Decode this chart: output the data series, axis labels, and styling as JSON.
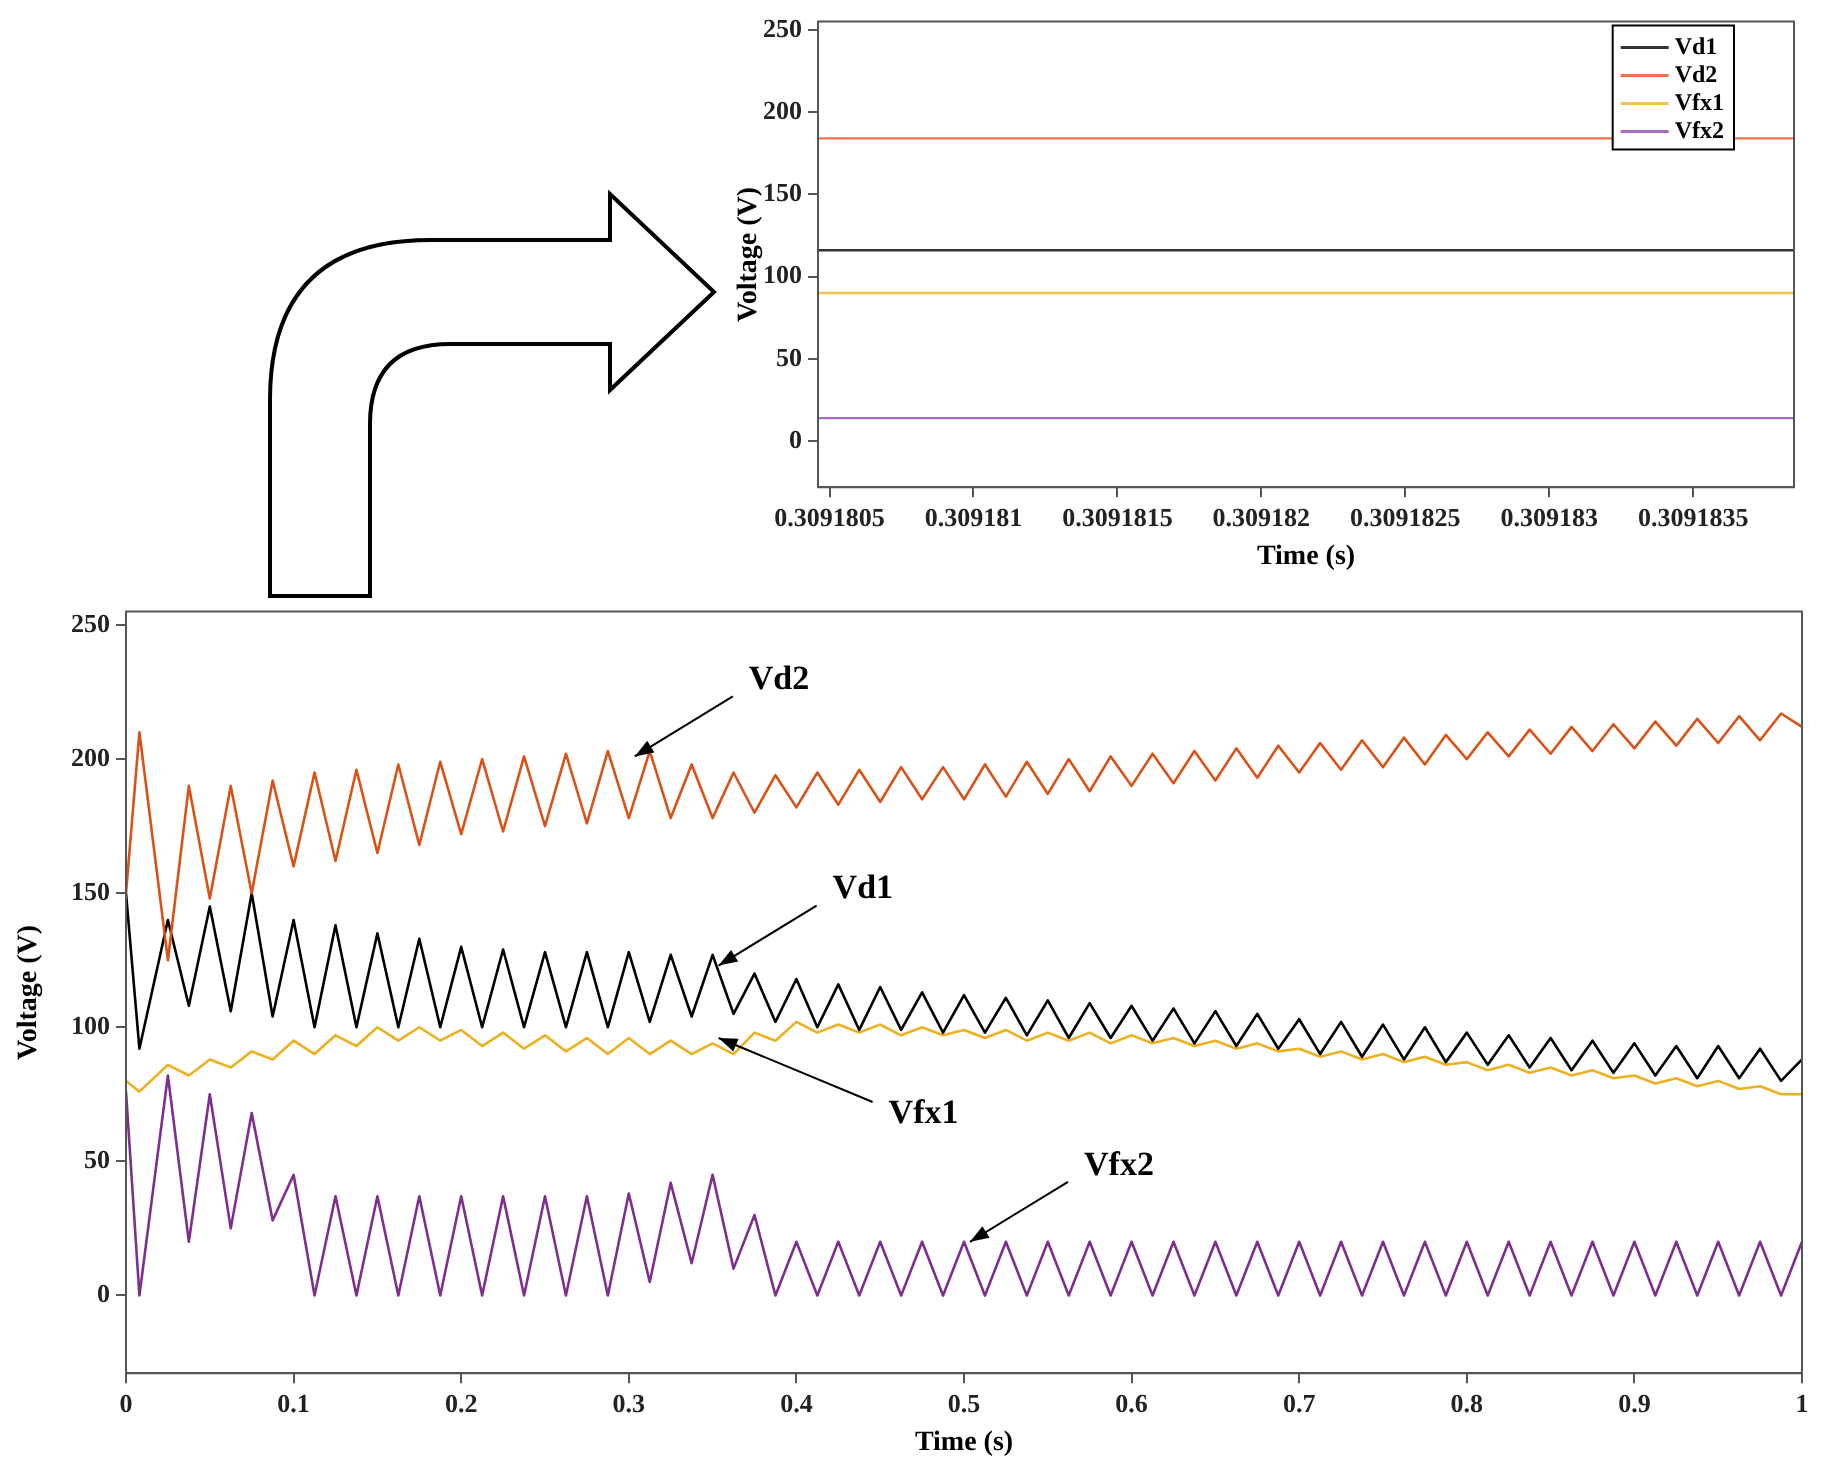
{
  "chart_data": [
    {
      "type": "line",
      "xlabel": "Time (s)",
      "ylabel": "Voltage (V)",
      "legend": "top right",
      "x": [
        0.30918046,
        0.30918385
      ],
      "xlim": [
        0.30918046,
        0.30918385
      ],
      "xticks": [
        0.3091805,
        0.309181,
        0.3091815,
        0.309182,
        0.3091825,
        0.309183,
        0.3091835
      ],
      "ylim": [
        -28,
        255
      ],
      "yticks": [
        0,
        50,
        100,
        150,
        200,
        250
      ],
      "series": [
        {
          "name": "Vd1",
          "color": "#333333",
          "values": [
            116,
            116
          ]
        },
        {
          "name": "Vd2",
          "color": "#e8744a",
          "values": [
            184,
            184
          ]
        },
        {
          "name": "Vfx1",
          "color": "#f2c14e",
          "values": [
            90,
            90
          ]
        },
        {
          "name": "Vfx2",
          "color": "#a66bc4",
          "values": [
            14,
            14
          ]
        }
      ]
    },
    {
      "type": "line",
      "xlabel": "Time (s)",
      "ylabel": "Voltage (V)",
      "x": [
        0,
        0.008,
        0.025,
        0.0375,
        0.05,
        0.0625,
        0.075,
        0.0875,
        0.1,
        0.1125,
        0.125,
        0.1375,
        0.15,
        0.1625,
        0.175,
        0.1875,
        0.2,
        0.2125,
        0.225,
        0.2375,
        0.25,
        0.2625,
        0.275,
        0.2875,
        0.3,
        0.3125,
        0.325,
        0.3375,
        0.35,
        0.3625,
        0.375,
        0.3875,
        0.4,
        0.4125,
        0.425,
        0.4375,
        0.45,
        0.4625,
        0.475,
        0.4875,
        0.5,
        0.5125,
        0.525,
        0.5375,
        0.55,
        0.5625,
        0.575,
        0.5875,
        0.6,
        0.6125,
        0.625,
        0.6375,
        0.65,
        0.6625,
        0.675,
        0.6875,
        0.7,
        0.7125,
        0.725,
        0.7375,
        0.75,
        0.7625,
        0.775,
        0.7875,
        0.8,
        0.8125,
        0.825,
        0.8375,
        0.85,
        0.8625,
        0.875,
        0.8875,
        0.9,
        0.9125,
        0.925,
        0.9375,
        0.95,
        0.9625,
        0.975,
        0.9875,
        1.0
      ],
      "xlim": [
        0,
        1
      ],
      "xticks": [
        0,
        0.1,
        0.2,
        0.3,
        0.4,
        0.5,
        0.6,
        0.7,
        0.8,
        0.9,
        1
      ],
      "ylim": [
        -29,
        255
      ],
      "yticks": [
        0,
        50,
        100,
        150,
        200,
        250
      ],
      "series": [
        {
          "color": "#d95319",
          "values": [
            150,
            210,
            125,
            190,
            148,
            190,
            150,
            192,
            160,
            195,
            162,
            196,
            165,
            198,
            168,
            199,
            172,
            200,
            173,
            201,
            175,
            202,
            176,
            203,
            178,
            203,
            178,
            198,
            178,
            195,
            180,
            194,
            182,
            195,
            183,
            196,
            184,
            197,
            185,
            197,
            185,
            198,
            186,
            199,
            187,
            200,
            188,
            201,
            190,
            202,
            191,
            203,
            192,
            204,
            193,
            205,
            195,
            206,
            196,
            207,
            197,
            208,
            198,
            209,
            200,
            210,
            201,
            211,
            202,
            212,
            203,
            213,
            204,
            214,
            205,
            215,
            206,
            216,
            207,
            217,
            212
          ]
        },
        {
          "color": "#000000",
          "values": [
            150,
            92,
            140,
            108,
            145,
            106,
            150,
            104,
            140,
            100,
            138,
            100,
            135,
            100,
            133,
            100,
            130,
            100,
            129,
            100,
            128,
            100,
            128,
            100,
            128,
            102,
            127,
            104,
            127,
            105,
            120,
            102,
            118,
            100,
            116,
            99,
            115,
            99,
            113,
            98,
            112,
            98,
            111,
            97,
            110,
            96,
            109,
            96,
            108,
            95,
            107,
            94,
            106,
            93,
            105,
            92,
            103,
            90,
            102,
            89,
            101,
            88,
            100,
            87,
            98,
            86,
            97,
            85,
            96,
            84,
            95,
            83,
            94,
            82,
            93,
            81,
            93,
            81,
            92,
            80,
            88
          ]
        },
        {
          "color": "#edb120",
          "values": [
            80,
            76,
            86,
            82,
            88,
            85,
            91,
            88,
            95,
            90,
            97,
            93,
            100,
            95,
            100,
            95,
            99,
            93,
            98,
            92,
            97,
            91,
            96,
            90,
            96,
            90,
            95,
            90,
            94,
            90,
            98,
            95,
            102,
            98,
            101,
            98,
            101,
            97,
            100,
            97,
            99,
            96,
            99,
            95,
            98,
            95,
            98,
            94,
            97,
            94,
            96,
            93,
            95,
            92,
            94,
            91,
            92,
            89,
            91,
            88,
            90,
            87,
            89,
            86,
            87,
            84,
            86,
            83,
            85,
            82,
            84,
            81,
            82,
            79,
            81,
            78,
            80,
            77,
            78,
            75,
            75
          ]
        },
        {
          "color": "#7e2f8e",
          "values": [
            76,
            0,
            82,
            20,
            75,
            25,
            68,
            28,
            45,
            0,
            37,
            0,
            37,
            0,
            37,
            0,
            37,
            0,
            37,
            0,
            37,
            0,
            37,
            0,
            38,
            5,
            42,
            12,
            45,
            10,
            30,
            0,
            20,
            0,
            20,
            0,
            20,
            0,
            20,
            0,
            20,
            0,
            20,
            0,
            20,
            0,
            20,
            0,
            20,
            0,
            20,
            0,
            20,
            0,
            20,
            0,
            20,
            0,
            20,
            0,
            20,
            0,
            20,
            0,
            20,
            0,
            20,
            0,
            20,
            0,
            20,
            0,
            20,
            0,
            20,
            0,
            20,
            0,
            20,
            0,
            20
          ]
        }
      ],
      "annotations": [
        {
          "text": "Vd2",
          "x": 0.3,
          "y": 201
        },
        {
          "text": "Vd1",
          "x": 0.35,
          "y": 123
        },
        {
          "text": "Vfx1",
          "x": 0.35,
          "y": 96
        },
        {
          "text": "Vfx2",
          "x": 0.5,
          "y": 20
        }
      ]
    }
  ]
}
